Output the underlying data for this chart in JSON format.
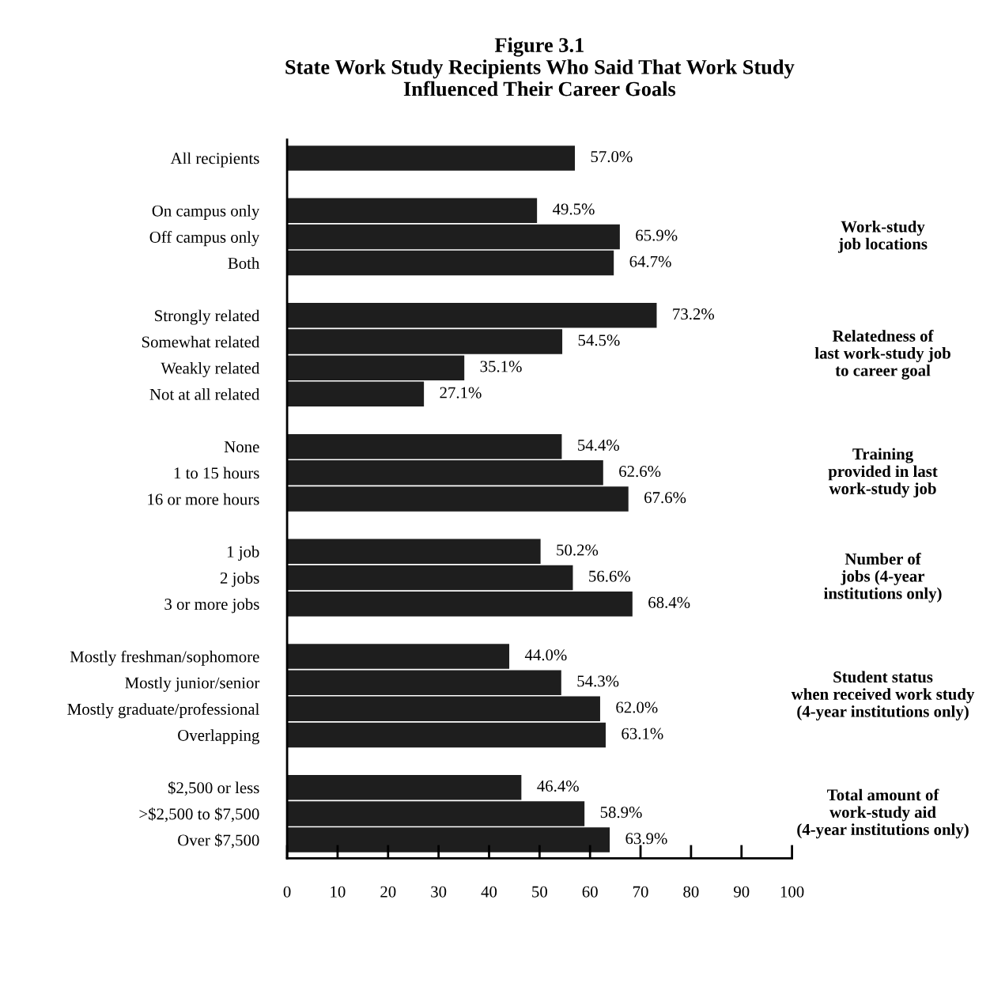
{
  "chart_data": {
    "type": "bar",
    "orientation": "horizontal",
    "title": "Figure 3.1\nState Work Study Recipients Who Said That Work Study\nInfluenced Their Career Goals",
    "categories": [
      "All recipients",
      null,
      "On campus only",
      "Off campus only",
      "Both",
      null,
      "Strongly related",
      "Somewhat related",
      "Weakly related",
      "Not at all related",
      null,
      "None",
      "1 to 15 hours",
      "16 or more hours",
      null,
      "1 job",
      "2 jobs",
      "3 or more jobs",
      null,
      "Mostly freshman/sophomore",
      "Mostly junior/senior",
      "Mostly graduate/professional",
      "Overlapping",
      null,
      "$2,500 or less",
      ">$2,500 to $7,500",
      "Over $7,500"
    ],
    "values": [
      57.0,
      null,
      49.5,
      65.9,
      64.7,
      null,
      73.2,
      54.5,
      35.1,
      27.1,
      null,
      54.4,
      62.6,
      67.6,
      null,
      50.2,
      56.6,
      68.4,
      null,
      44.0,
      54.3,
      62.0,
      63.1,
      null,
      46.4,
      58.9,
      63.9
    ],
    "value_labels": [
      "57.0%",
      null,
      "49.5%",
      "65.9%",
      "64.7%",
      null,
      "73.2%",
      "54.5%",
      "35.1%",
      "27.1%",
      null,
      "54.4%",
      "62.6%",
      "67.6%",
      null,
      "50.2%",
      "56.6%",
      "68.4%",
      null,
      "44.0%",
      "54.3%",
      "62.0%",
      "63.1%",
      null,
      "46.4%",
      "58.9%",
      "63.9%"
    ],
    "color": "#1e1e1e",
    "xlim": [
      0,
      100
    ],
    "xticks": [
      0,
      10,
      20,
      30,
      40,
      50,
      60,
      70,
      80,
      90,
      100
    ],
    "grid": false,
    "annotations": [
      "Work-study\njob locations",
      "Relatedness of\nlast work-study job\nto career goal",
      "Training\nprovided in last\nwork-study job",
      "Number of\njobs (4-year\ninstitutions only)",
      "Student status\nwhen received work study\n(4-year institutions only)",
      "Total amount of\nwork-study aid\n(4-year institutions only)"
    ]
  }
}
